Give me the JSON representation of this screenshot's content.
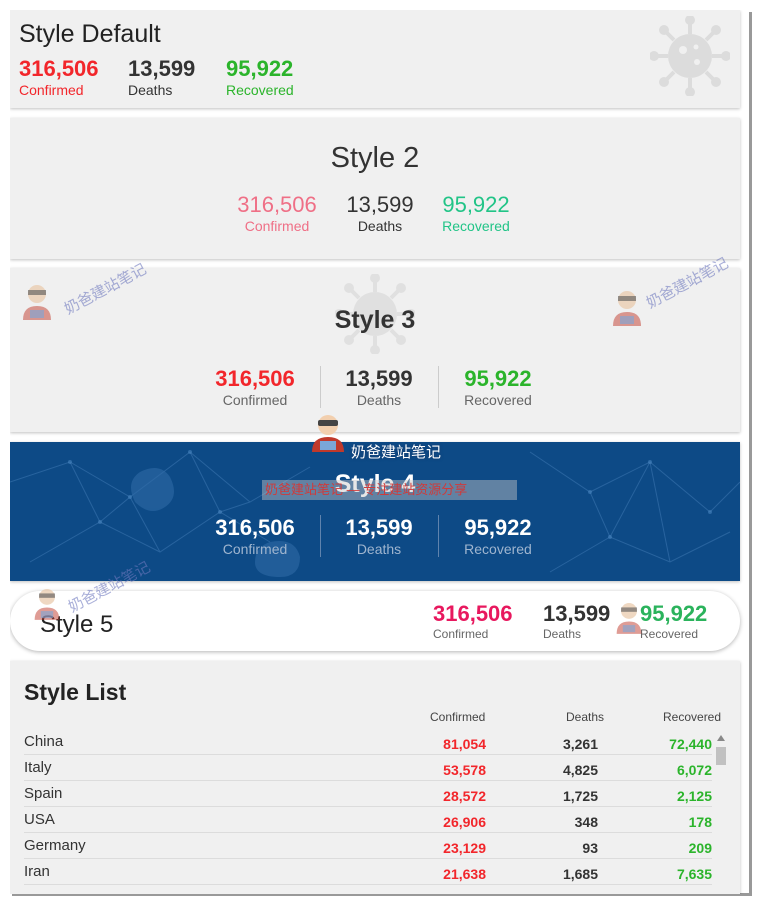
{
  "colors": {
    "confirmed": "#f2262b",
    "deaths": "#333333",
    "recovered": "#2bb42b",
    "style4_bg": "#0d4a86"
  },
  "style_default": {
    "title": "Style Default",
    "confirmed": "316,506",
    "confirmed_label": "Confirmed",
    "deaths": "13,599",
    "deaths_label": "Deaths",
    "recovered": "95,922",
    "recovered_label": "Recovered",
    "icon": "virus-icon"
  },
  "style2": {
    "title": "Style 2",
    "confirmed": "316,506",
    "confirmed_label": "Confirmed",
    "deaths": "13,599",
    "deaths_label": "Deaths",
    "recovered": "95,922",
    "recovered_label": "Recovered"
  },
  "style3": {
    "title": "Style 3",
    "confirmed": "316,506",
    "confirmed_label": "Confirmed",
    "deaths": "13,599",
    "deaths_label": "Deaths",
    "recovered": "95,922",
    "recovered_label": "Recovered",
    "icon": "virus-icon"
  },
  "style4": {
    "title": "Style 4",
    "confirmed": "316,506",
    "confirmed_label": "Confirmed",
    "deaths": "13,599",
    "deaths_label": "Deaths",
    "recovered": "95,922",
    "recovered_label": "Recovered"
  },
  "style5": {
    "title": "Style 5",
    "confirmed": "316,506",
    "confirmed_label": "Confirmed",
    "deaths": "13,599",
    "deaths_label": "Deaths",
    "recovered": "95,922",
    "recovered_label": "Recovered"
  },
  "style_list": {
    "title": "Style List",
    "headers": {
      "confirmed": "Confirmed",
      "deaths": "Deaths",
      "recovered": "Recovered"
    },
    "rows": [
      {
        "country": "China",
        "confirmed": "81,054",
        "deaths": "3,261",
        "recovered": "72,440"
      },
      {
        "country": "Italy",
        "confirmed": "53,578",
        "deaths": "4,825",
        "recovered": "6,072"
      },
      {
        "country": "Spain",
        "confirmed": "28,572",
        "deaths": "1,725",
        "recovered": "2,125"
      },
      {
        "country": "USA",
        "confirmed": "26,906",
        "deaths": "348",
        "recovered": "178"
      },
      {
        "country": "Germany",
        "confirmed": "23,129",
        "deaths": "93",
        "recovered": "209"
      },
      {
        "country": "Iran",
        "confirmed": "21,638",
        "deaths": "1,685",
        "recovered": "7,635"
      }
    ]
  },
  "watermark": {
    "text": "奶爸建站笔记",
    "banner": "奶爸建站笔记 — 专注建站资源分享"
  }
}
